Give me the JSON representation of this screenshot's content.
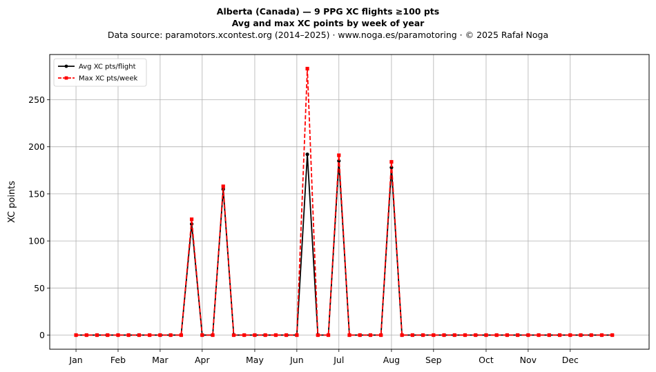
{
  "header": {
    "title_line1": "Alberta (Canada)  —  9 PPG XC flights ≥100 pts",
    "title_line2": "Avg and max XC points by week of year",
    "subtitle": "Data source: paramotors.xcontest.org (2014–2025)  ·  www.noga.es/paramotoring  ·  © 2025 Rafał Noga"
  },
  "chart_data": {
    "type": "line",
    "title": "Alberta (Canada)  —  9 PPG XC flights ≥100 pts",
    "subtitle": "Avg and max XC points by week of year",
    "xlabel": "",
    "ylabel": "XC points",
    "xlim": [
      -2.5,
      54.5
    ],
    "ylim": [
      -15,
      298
    ],
    "x_ticks": [
      {
        "label": "Jan",
        "value": 0
      },
      {
        "label": "Feb",
        "value": 4
      },
      {
        "label": "Mar",
        "value": 8
      },
      {
        "label": "Apr",
        "value": 12
      },
      {
        "label": "May",
        "value": 17
      },
      {
        "label": "Jun",
        "value": 21
      },
      {
        "label": "Jul",
        "value": 25
      },
      {
        "label": "Aug",
        "value": 30
      },
      {
        "label": "Sep",
        "value": 34
      },
      {
        "label": "Oct",
        "value": 39
      },
      {
        "label": "Nov",
        "value": 43
      },
      {
        "label": "Dec",
        "value": 47
      }
    ],
    "y_ticks": [
      0,
      50,
      100,
      150,
      200,
      250
    ],
    "grid": true,
    "legend_position": "top-left",
    "x": [
      0,
      1,
      2,
      3,
      4,
      5,
      6,
      7,
      8,
      9,
      10,
      11,
      12,
      13,
      14,
      15,
      16,
      17,
      18,
      19,
      20,
      21,
      22,
      23,
      24,
      25,
      26,
      27,
      28,
      29,
      30,
      31,
      32,
      33,
      34,
      35,
      36,
      37,
      38,
      39,
      40,
      41,
      42,
      43,
      44,
      45,
      46,
      47,
      48,
      49,
      50,
      51
    ],
    "series": [
      {
        "name": "Avg XC pts/flight",
        "color": "#000000",
        "style": "solid",
        "marker": "circle",
        "values": [
          0,
          0,
          0,
          0,
          0,
          0,
          0,
          0,
          0,
          0,
          0,
          118,
          0,
          0,
          155,
          0,
          0,
          0,
          0,
          0,
          0,
          0,
          192,
          0,
          0,
          185,
          0,
          0,
          0,
          0,
          178,
          0,
          0,
          0,
          0,
          0,
          0,
          0,
          0,
          0,
          0,
          0,
          0,
          0,
          0,
          0,
          0,
          0,
          0,
          0,
          0,
          0
        ]
      },
      {
        "name": "Max XC pts/week",
        "color": "#ff0000",
        "style": "dashed",
        "marker": "square",
        "values": [
          0,
          0,
          0,
          0,
          0,
          0,
          0,
          0,
          0,
          0,
          0,
          123,
          0,
          0,
          158,
          0,
          0,
          0,
          0,
          0,
          0,
          0,
          283,
          0,
          0,
          191,
          0,
          0,
          0,
          0,
          184,
          0,
          0,
          0,
          0,
          0,
          0,
          0,
          0,
          0,
          0,
          0,
          0,
          0,
          0,
          0,
          0,
          0,
          0,
          0,
          0,
          0
        ]
      }
    ]
  }
}
